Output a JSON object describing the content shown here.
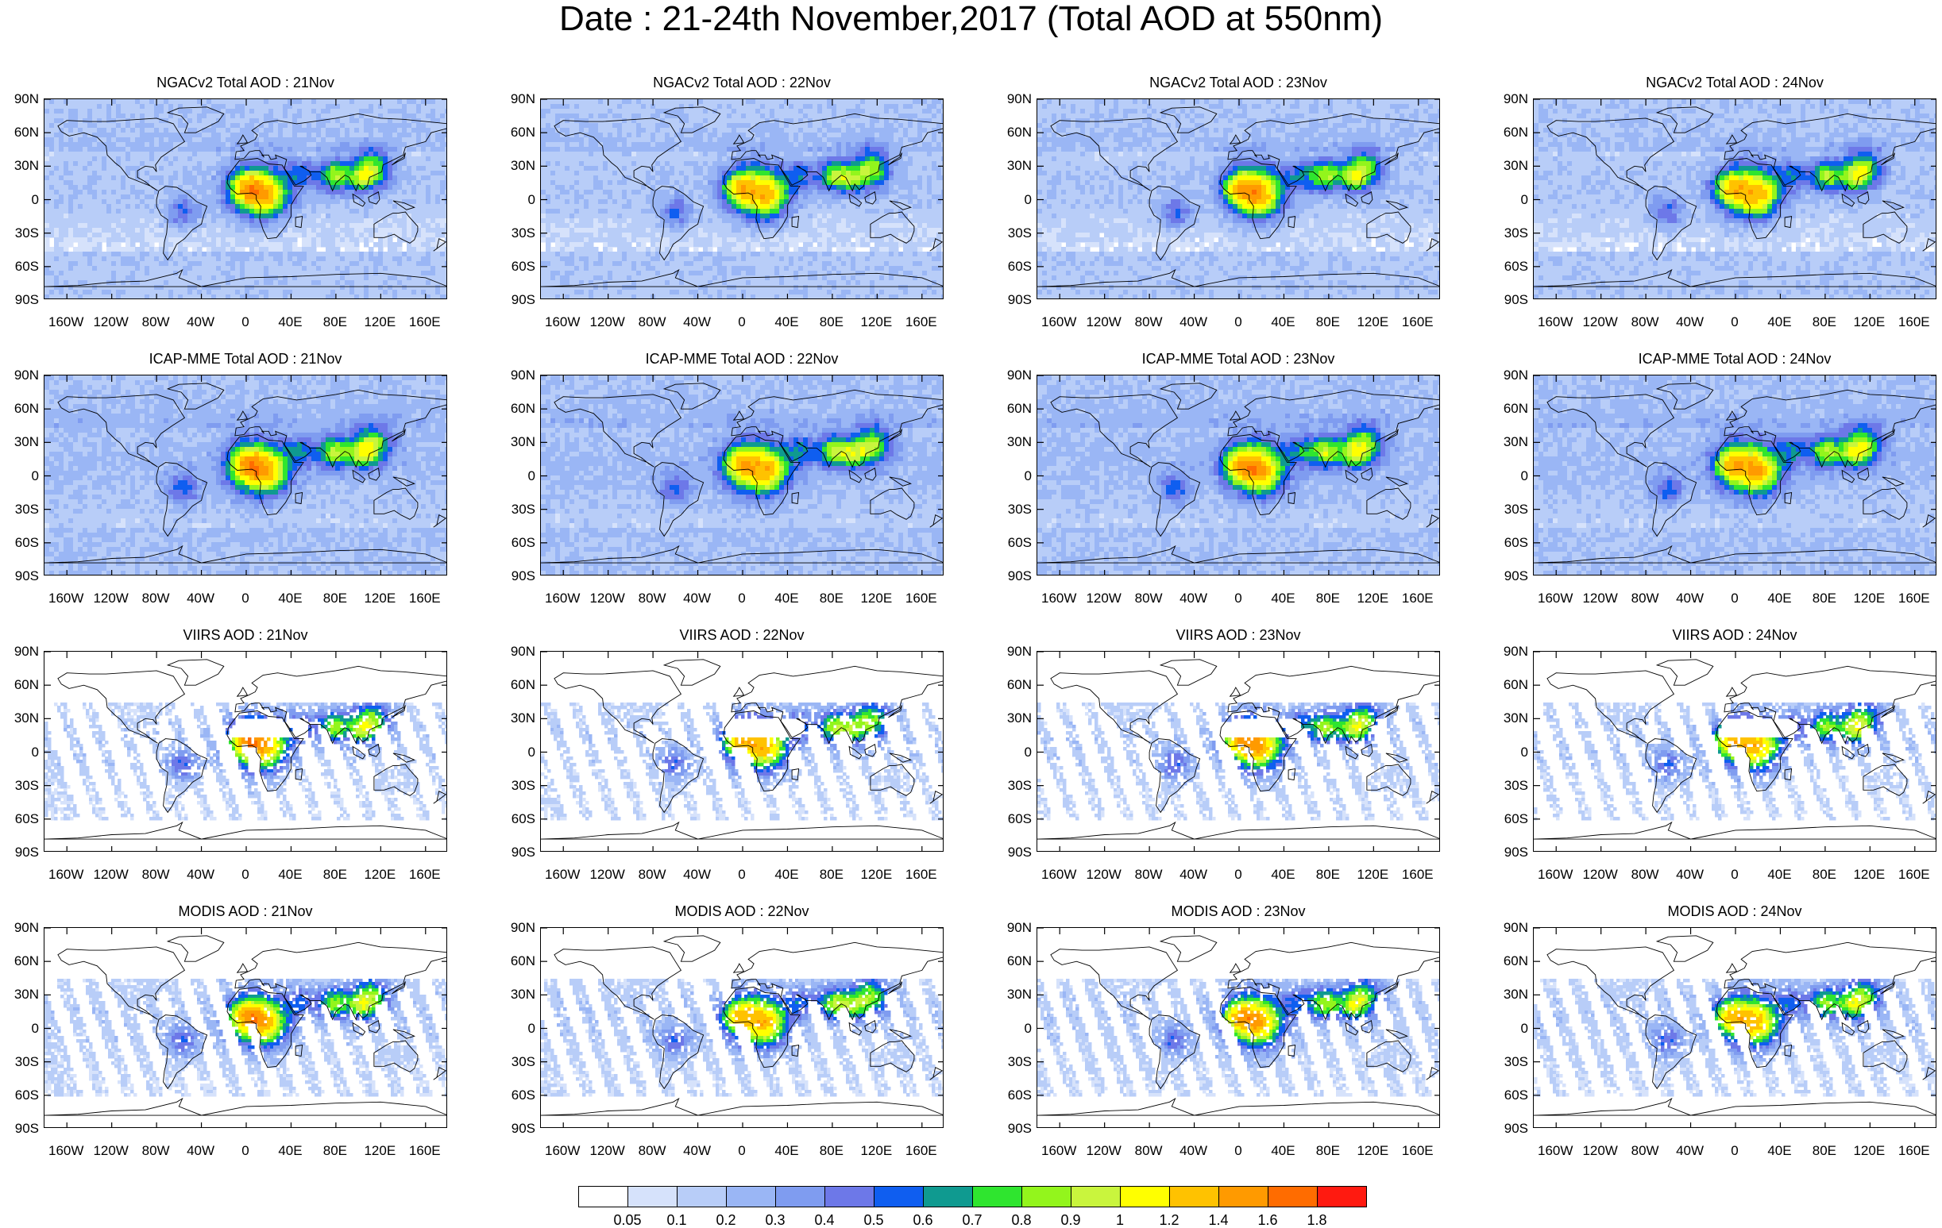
{
  "title": "Date : 21-24th November,2017 (Total AOD at 550nm)",
  "panels": [
    {
      "title": "NGACv2 Total AOD : 21Nov",
      "row": 0,
      "col": 0
    },
    {
      "title": "NGACv2 Total AOD : 22Nov",
      "row": 0,
      "col": 1
    },
    {
      "title": "NGACv2 Total AOD : 23Nov",
      "row": 0,
      "col": 2
    },
    {
      "title": "NGACv2 Total AOD : 24Nov",
      "row": 0,
      "col": 3
    },
    {
      "title": "ICAP-MME Total AOD : 21Nov",
      "row": 1,
      "col": 0
    },
    {
      "title": "ICAP-MME Total AOD : 22Nov",
      "row": 1,
      "col": 1
    },
    {
      "title": "ICAP-MME Total AOD : 23Nov",
      "row": 1,
      "col": 2
    },
    {
      "title": "ICAP-MME Total AOD : 24Nov",
      "row": 1,
      "col": 3
    },
    {
      "title": "VIIRS AOD : 21Nov",
      "row": 2,
      "col": 0
    },
    {
      "title": "VIIRS AOD : 22Nov",
      "row": 2,
      "col": 1
    },
    {
      "title": "VIIRS AOD : 23Nov",
      "row": 2,
      "col": 2
    },
    {
      "title": "VIIRS AOD : 24Nov",
      "row": 2,
      "col": 3
    },
    {
      "title": "MODIS AOD : 21Nov",
      "row": 3,
      "col": 0
    },
    {
      "title": "MODIS AOD : 22Nov",
      "row": 3,
      "col": 1
    },
    {
      "title": "MODIS AOD : 23Nov",
      "row": 3,
      "col": 2
    },
    {
      "title": "MODIS AOD : 24Nov",
      "row": 3,
      "col": 3
    }
  ],
  "chart_data": {
    "type": "heatmap",
    "lat_ticks": [
      "90N",
      "60N",
      "30N",
      "0",
      "30S",
      "60S",
      "90S"
    ],
    "lon_ticks": [
      "160W",
      "120W",
      "80W",
      "40W",
      "0",
      "40E",
      "80E",
      "120E",
      "160E"
    ],
    "xlim": [
      -180,
      180
    ],
    "ylim": [
      -90,
      90
    ],
    "colorbar": {
      "levels": [
        "0.05",
        "0.1",
        "0.2",
        "0.3",
        "0.4",
        "0.5",
        "0.6",
        "0.7",
        "0.8",
        "0.9",
        "1",
        "1.2",
        "1.4",
        "1.6",
        "1.8"
      ],
      "colors": [
        "#ffffff",
        "#d6e2fb",
        "#b8cdf8",
        "#9ab6f5",
        "#7f9cf0",
        "#6d78e8",
        "#0f5ef0",
        "#0f9a90",
        "#2fe52f",
        "#93f51c",
        "#c9f53d",
        "#ffff00",
        "#ffc200",
        "#ff9a00",
        "#ff6c00",
        "#ff1a10"
      ]
    }
  }
}
